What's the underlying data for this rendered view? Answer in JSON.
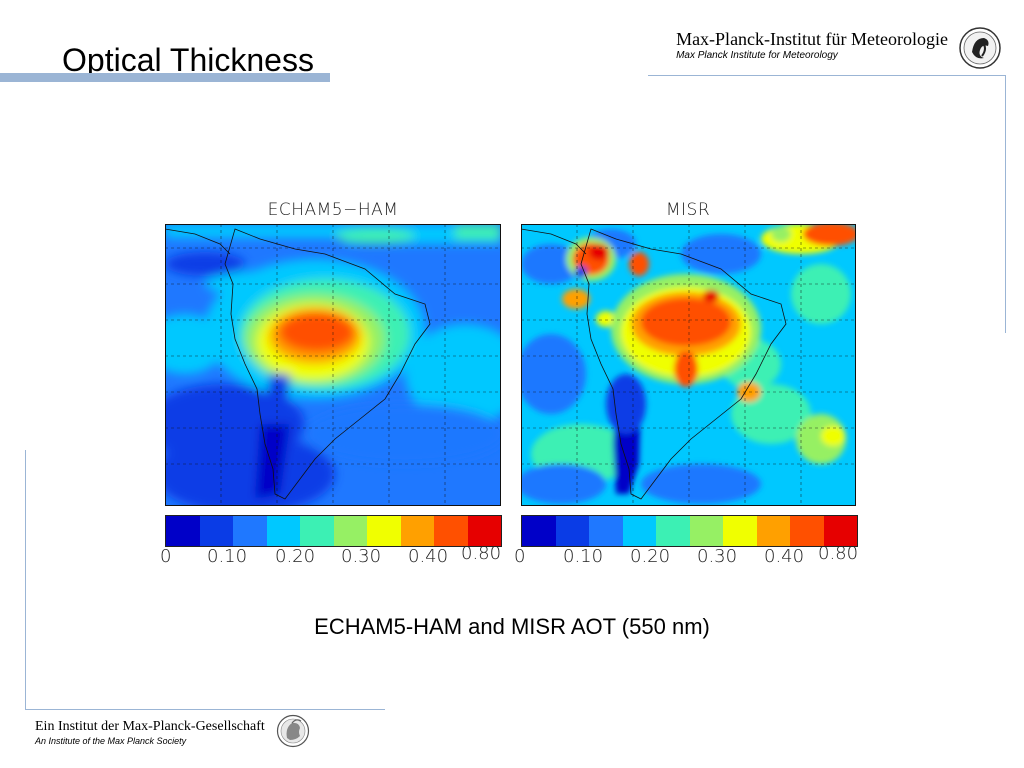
{
  "slide": {
    "title": "Optical Thickness",
    "caption": "ECHAM5-HAM and MISR AOT (550 nm)"
  },
  "header_logo": {
    "line1": "Max-Planck-Institut für Meteorologie",
    "line2": "Max Planck Institute for Meteorology",
    "icon": "mpi-meteorology-emblem-icon"
  },
  "footer_logo": {
    "line1": "Ein Institut der Max-Planck-Gesellschaft",
    "line2": "An Institute of the Max Planck Society",
    "icon": "minerva-emblem-icon"
  },
  "colors": {
    "accent_line": "#9bb5d5",
    "scale": [
      "#0000c8",
      "#0a3ce6",
      "#1f78ff",
      "#00c8ff",
      "#3cf0b4",
      "#96f064",
      "#f0ff00",
      "#ffa000",
      "#ff5000",
      "#e60000"
    ]
  },
  "panels": [
    {
      "title": "ECHAM5−HAM",
      "map_description": "South America AOT field",
      "ticks": [
        "0",
        "0.10",
        "0.20",
        "0.30",
        "0.40",
        "0.80"
      ]
    },
    {
      "title": "MISR",
      "map_description": "South America AOT field",
      "ticks": [
        "0",
        "0.10",
        "0.20",
        "0.30",
        "0.40",
        "0.80"
      ]
    }
  ]
}
